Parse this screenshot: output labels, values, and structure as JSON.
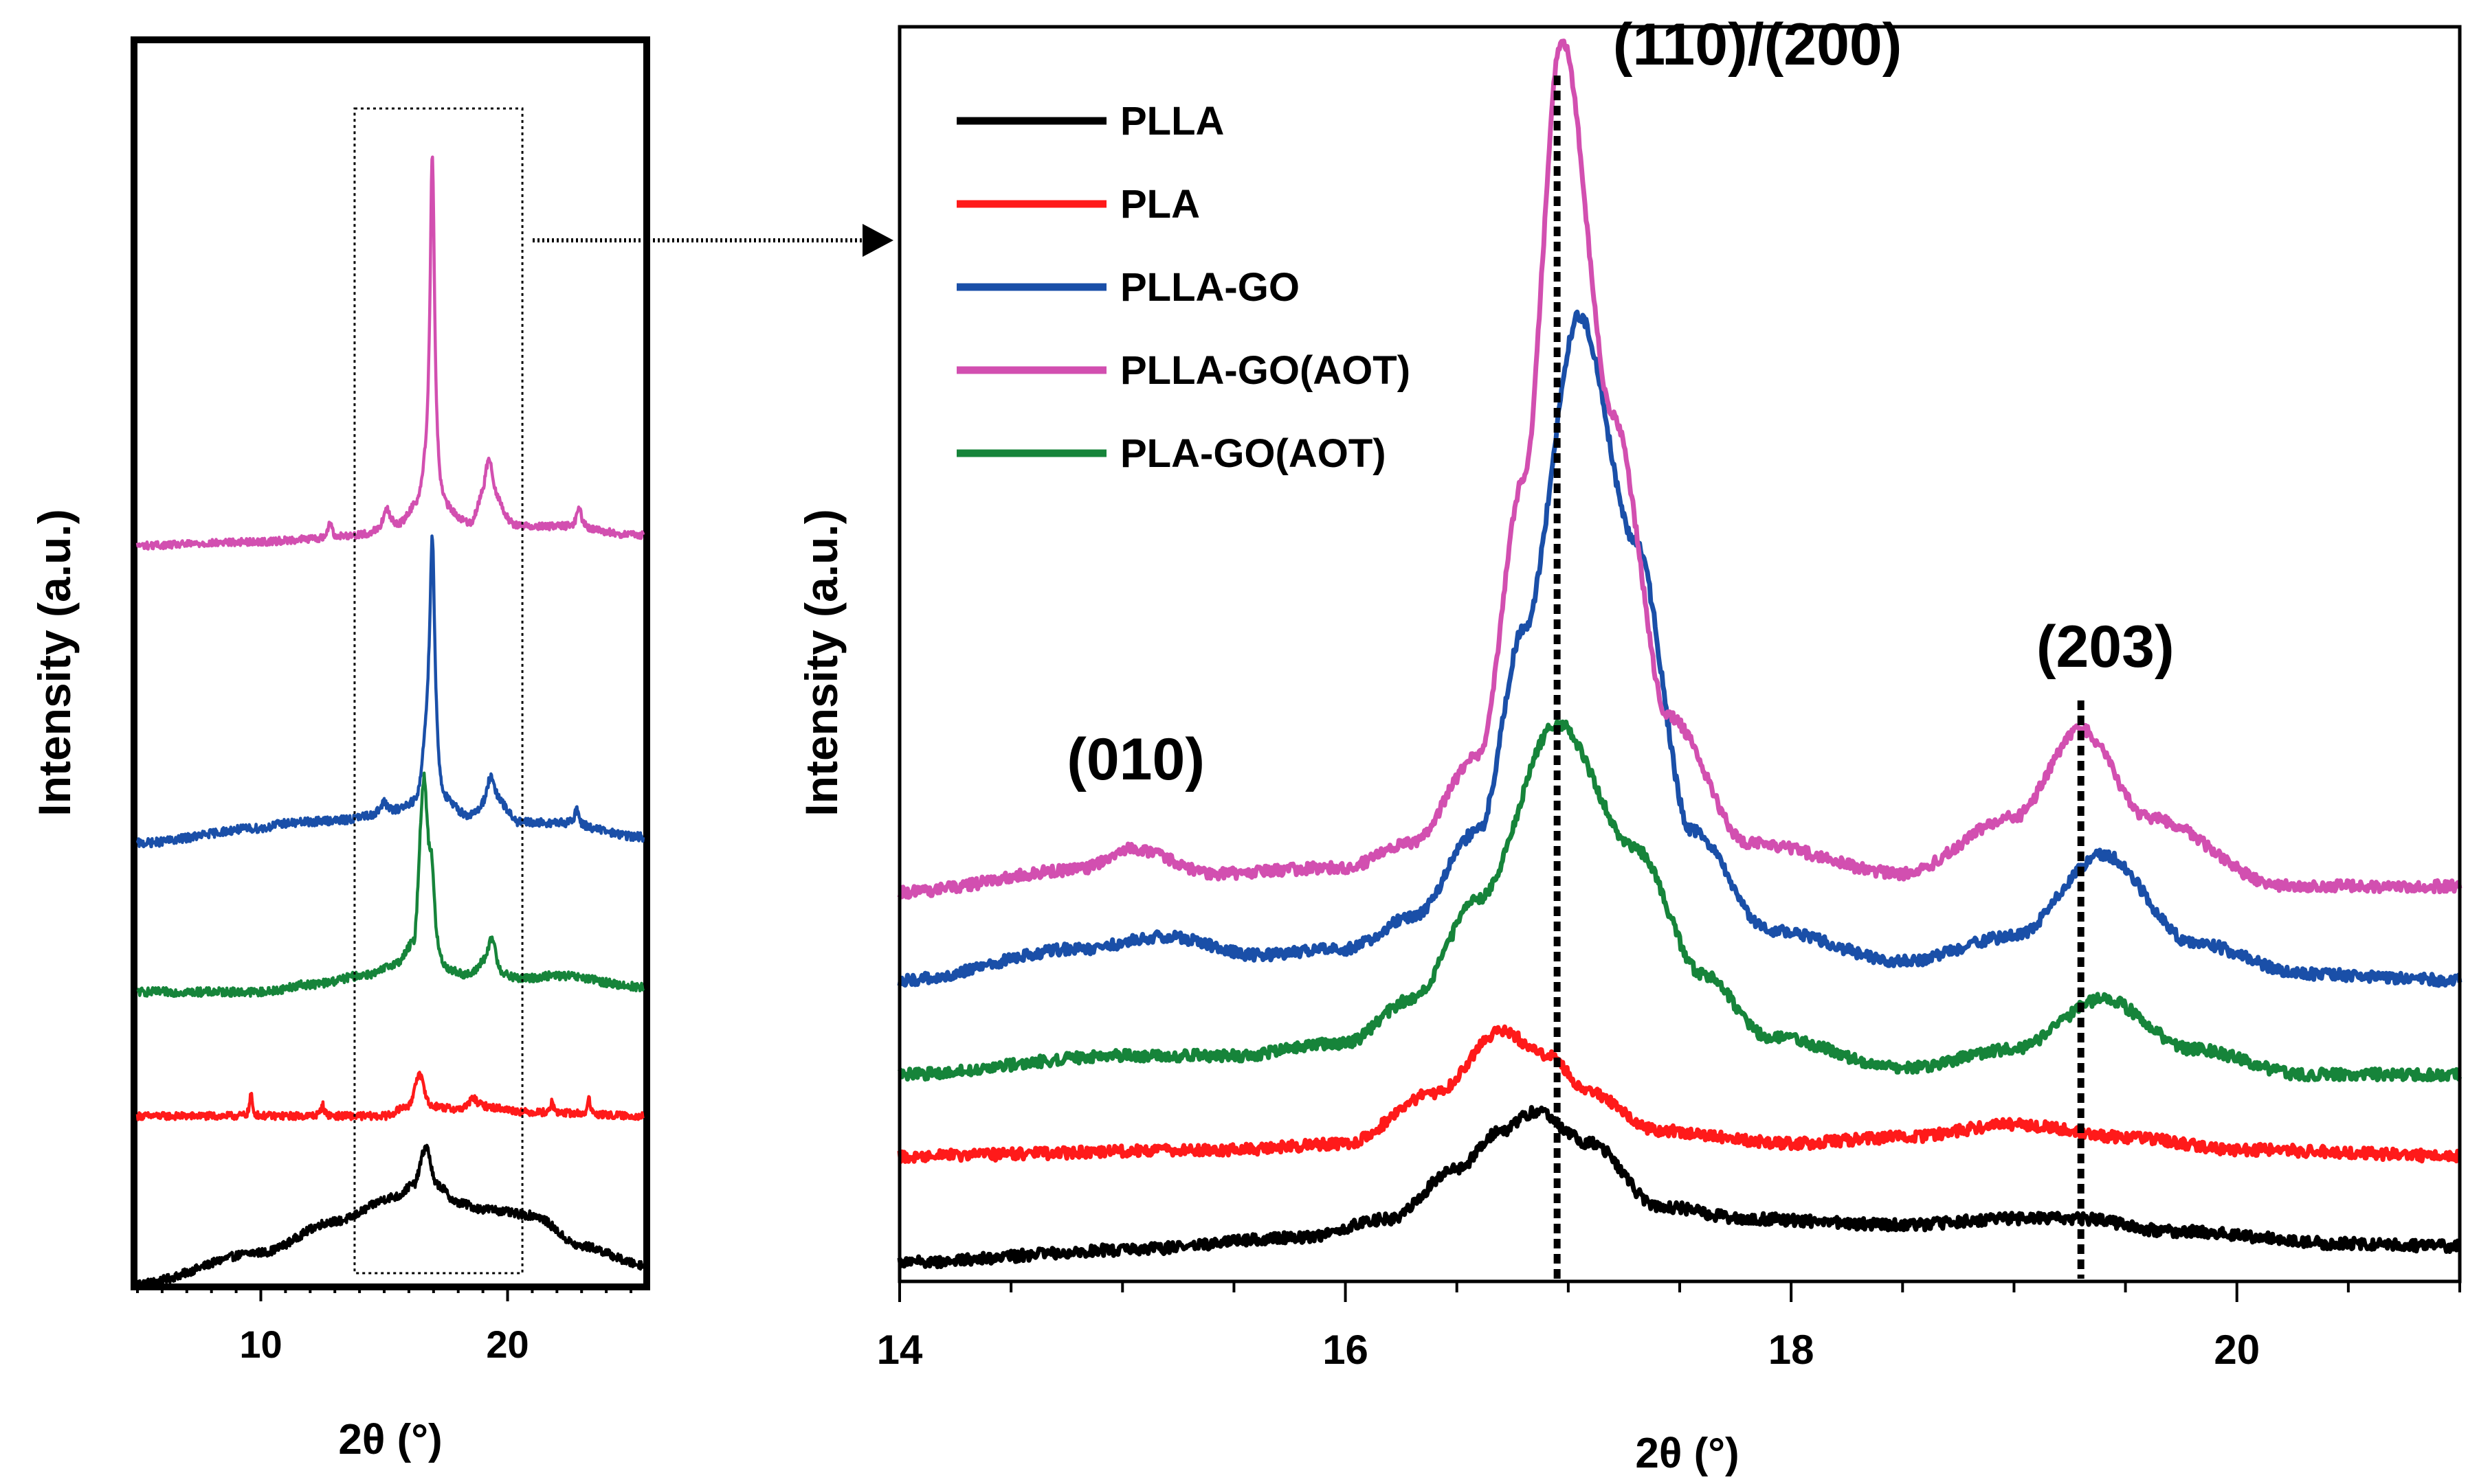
{
  "colors": {
    "PLLA": "#000000",
    "PLA": "#ff1a1a",
    "PLLA-GO": "#1a4fa8",
    "PLLA-GO(AOT)": "#d24fb0",
    "PLA-GO(AOT)": "#16843a"
  },
  "chart_data": [
    {
      "type": "line",
      "panel": "overview",
      "xlabel": "2θ (°)",
      "ylabel": "Intensity (a.u.)",
      "xlim": [
        5,
        25.5
      ],
      "ylim": [
        0,
        100
      ],
      "xticks": [
        10,
        20
      ],
      "xtick_labels": [
        "10",
        "20"
      ],
      "zoom_window": [
        13.8,
        20.6
      ],
      "series": [
        {
          "name": "PLLA",
          "color": "#000000",
          "offset": 0,
          "base": [
            [
              5,
              0
            ],
            [
              10,
              2.5
            ],
            [
              13,
              5
            ],
            [
              15.5,
              7
            ],
            [
              16.2,
              8
            ],
            [
              16.7,
              11
            ],
            [
              17.1,
              8
            ],
            [
              18,
              6.5
            ],
            [
              19,
              6
            ],
            [
              21,
              5.5
            ],
            [
              23,
              3
            ],
            [
              25.5,
              1.5
            ]
          ],
          "peaks": [],
          "noise": 0.35
        },
        {
          "name": "PLA",
          "color": "#ff1a1a",
          "offset": 13.5,
          "base": [
            [
              5,
              0
            ],
            [
              10,
              0
            ],
            [
              15,
              0
            ],
            [
              16,
              0.8
            ],
            [
              16.4,
              3.3
            ],
            [
              16.9,
              0.8
            ],
            [
              18,
              0.5
            ],
            [
              19,
              0.7
            ],
            [
              21,
              0.3
            ],
            [
              25.5,
              0
            ]
          ],
          "peaks": [
            [
              9.6,
              1.8,
              0.06
            ],
            [
              12.5,
              0.9,
              0.08
            ],
            [
              18.6,
              0.8,
              0.2
            ],
            [
              21.8,
              1.1,
              0.05
            ],
            [
              23.3,
              1.5,
              0.05
            ]
          ],
          "noise": 0.3
        },
        {
          "name": "PLA-GO(AOT)",
          "color": "#16843a",
          "offset": 23.5,
          "base": [
            [
              5,
              0
            ],
            [
              10,
              0
            ],
            [
              12,
              0.6
            ],
            [
              14.5,
              1.4
            ],
            [
              15.5,
              2.2
            ],
            [
              16.2,
              3.6
            ],
            [
              16.6,
              15
            ],
            [
              16.9,
              1.5
            ],
            [
              17.5,
              1.4
            ],
            [
              18.5,
              1.2
            ],
            [
              19,
              2
            ],
            [
              19.3,
              2
            ],
            [
              19.6,
              1.1
            ],
            [
              20.5,
              1
            ],
            [
              22,
              1.3
            ],
            [
              25.5,
              0.4
            ]
          ],
          "peaks": [
            [
              16.9,
              10,
              0.16
            ],
            [
              19.4,
              2.5,
              0.2
            ]
          ],
          "noise": 0.35
        },
        {
          "name": "PLLA-GO",
          "color": "#1a4fa8",
          "offset": 35.5,
          "base": [
            [
              5,
              0
            ],
            [
              10,
              1.2
            ],
            [
              11,
              1.6
            ],
            [
              13,
              1.8
            ],
            [
              15,
              2.2
            ],
            [
              16.3,
              3
            ],
            [
              16.8,
              8
            ],
            [
              17.4,
              3
            ],
            [
              18.5,
              2
            ],
            [
              19,
              2.5
            ],
            [
              19.6,
              3
            ],
            [
              20.5,
              1.6
            ],
            [
              22,
              1.6
            ],
            [
              25.5,
              0.5
            ]
          ],
          "peaks": [
            [
              16.95,
              17.5,
              0.12
            ],
            [
              19.3,
              2.5,
              0.2
            ],
            [
              15.0,
              1.0,
              0.2
            ],
            [
              22.8,
              1.3,
              0.1
            ]
          ],
          "noise": 0.35
        },
        {
          "name": "PLLA-GO(AOT)",
          "color": "#d24fb0",
          "offset": 59.5,
          "base": [
            [
              5,
              0
            ],
            [
              10,
              0.3
            ],
            [
              12,
              0.5
            ],
            [
              14,
              0.8
            ],
            [
              15.6,
              1.5
            ],
            [
              16.3,
              2.8
            ],
            [
              16.8,
              5
            ],
            [
              17.4,
              2.5
            ],
            [
              18.5,
              1.5
            ],
            [
              19,
              3
            ],
            [
              19.5,
              3
            ],
            [
              20.3,
              1.5
            ],
            [
              22,
              1.5
            ],
            [
              25.5,
              0.8
            ]
          ],
          "peaks": [
            [
              16.95,
              27,
              0.11
            ],
            [
              19.25,
              4,
              0.2
            ],
            [
              15.1,
              1.5,
              0.15
            ],
            [
              12.8,
              1.4,
              0.08
            ],
            [
              22.9,
              1.6,
              0.12
            ]
          ],
          "noise": 0.3
        }
      ]
    },
    {
      "type": "line",
      "panel": "zoom",
      "xlabel": "2θ (°)",
      "ylabel": "Intensity (a.u.)",
      "xlim": [
        14,
        21
      ],
      "ylim": [
        0,
        100
      ],
      "xticks": [
        14,
        16,
        18,
        20
      ],
      "xtick_labels": [
        "14",
        "16",
        "18",
        "20"
      ],
      "annotations": [
        {
          "text": "(010)",
          "x": 14.75,
          "y": 40
        },
        {
          "text": "(110)/(200)",
          "x": 17.2,
          "y": 97
        },
        {
          "text": "(203)",
          "x": 19.1,
          "y": 49
        }
      ],
      "reference_lines": [
        16.95,
        19.3
      ],
      "series": [
        {
          "name": "PLLA",
          "color": "#000000",
          "offset": 0,
          "base": [
            [
              14,
              1.5
            ],
            [
              15,
              2.5
            ],
            [
              15.8,
              3.5
            ],
            [
              16.2,
              5
            ],
            [
              16.5,
              9
            ],
            [
              16.7,
              12
            ],
            [
              16.85,
              13.5
            ],
            [
              17.1,
              11
            ],
            [
              17.4,
              6
            ],
            [
              17.8,
              5
            ],
            [
              18.5,
              4.5
            ],
            [
              19,
              5
            ],
            [
              19.3,
              5
            ],
            [
              19.7,
              4
            ],
            [
              20.5,
              3
            ],
            [
              21,
              2.8
            ]
          ],
          "peaks": [],
          "noise": 0.45
        },
        {
          "name": "PLA",
          "color": "#ff1a1a",
          "offset": 10,
          "base": [
            [
              14,
              0
            ],
            [
              15.5,
              0.5
            ],
            [
              16,
              1
            ],
            [
              16.4,
              5
            ],
            [
              16.7,
              10
            ],
            [
              16.9,
              8
            ],
            [
              17.1,
              5
            ],
            [
              17.4,
              2
            ],
            [
              18,
              1
            ],
            [
              18.5,
              1.5
            ],
            [
              19,
              2.5
            ],
            [
              19.5,
              1.5
            ],
            [
              20,
              0.5
            ],
            [
              21,
              0
            ]
          ],
          "peaks": [],
          "noise": 0.45
        },
        {
          "name": "PLA-GO(AOT)",
          "color": "#16843a",
          "offset": 16.5,
          "base": [
            [
              14,
              0
            ],
            [
              15,
              1.5
            ],
            [
              15.5,
              1.5
            ],
            [
              16,
              2.5
            ],
            [
              16.3,
              6
            ],
            [
              16.6,
              14
            ],
            [
              16.95,
              28
            ],
            [
              17.3,
              18
            ],
            [
              17.6,
              8
            ],
            [
              17.9,
              3
            ],
            [
              18.5,
              0.5
            ],
            [
              19,
              2
            ],
            [
              19.4,
              6
            ],
            [
              19.8,
              2
            ],
            [
              20.3,
              0
            ],
            [
              21,
              0
            ]
          ],
          "peaks": [],
          "noise": 0.45
        },
        {
          "name": "PLLA-GO",
          "color": "#1a4fa8",
          "offset": 24,
          "base": [
            [
              14,
              0
            ],
            [
              14.8,
              2.5
            ],
            [
              15.2,
              3.5
            ],
            [
              15.6,
              2
            ],
            [
              16,
              2.5
            ],
            [
              16.3,
              5
            ],
            [
              16.6,
              12
            ],
            [
              16.8,
              28
            ],
            [
              17.05,
              53
            ],
            [
              17.3,
              35
            ],
            [
              17.55,
              12
            ],
            [
              17.9,
              4
            ],
            [
              18.5,
              1.5
            ],
            [
              19,
              3.5
            ],
            [
              19.4,
              10
            ],
            [
              19.8,
              3
            ],
            [
              20.3,
              0.5
            ],
            [
              21,
              0
            ]
          ],
          "peaks": [],
          "noise": 0.45
        },
        {
          "name": "PLLA-GO(AOT)",
          "color": "#d24fb0",
          "offset": 31,
          "base": [
            [
              14,
              0
            ],
            [
              14.8,
              1.8
            ],
            [
              15.05,
              3.5
            ],
            [
              15.4,
              1.5
            ],
            [
              16,
              2
            ],
            [
              16.3,
              4
            ],
            [
              16.6,
              11
            ],
            [
              16.8,
              33
            ],
            [
              16.97,
              68
            ],
            [
              17.2,
              38
            ],
            [
              17.45,
              14
            ],
            [
              17.8,
              4
            ],
            [
              18.5,
              1.5
            ],
            [
              19,
              6
            ],
            [
              19.3,
              13
            ],
            [
              19.6,
              6
            ],
            [
              20.2,
              0.5
            ],
            [
              21,
              0.5
            ]
          ],
          "peaks": [],
          "noise": 0.45
        }
      ]
    }
  ]
}
